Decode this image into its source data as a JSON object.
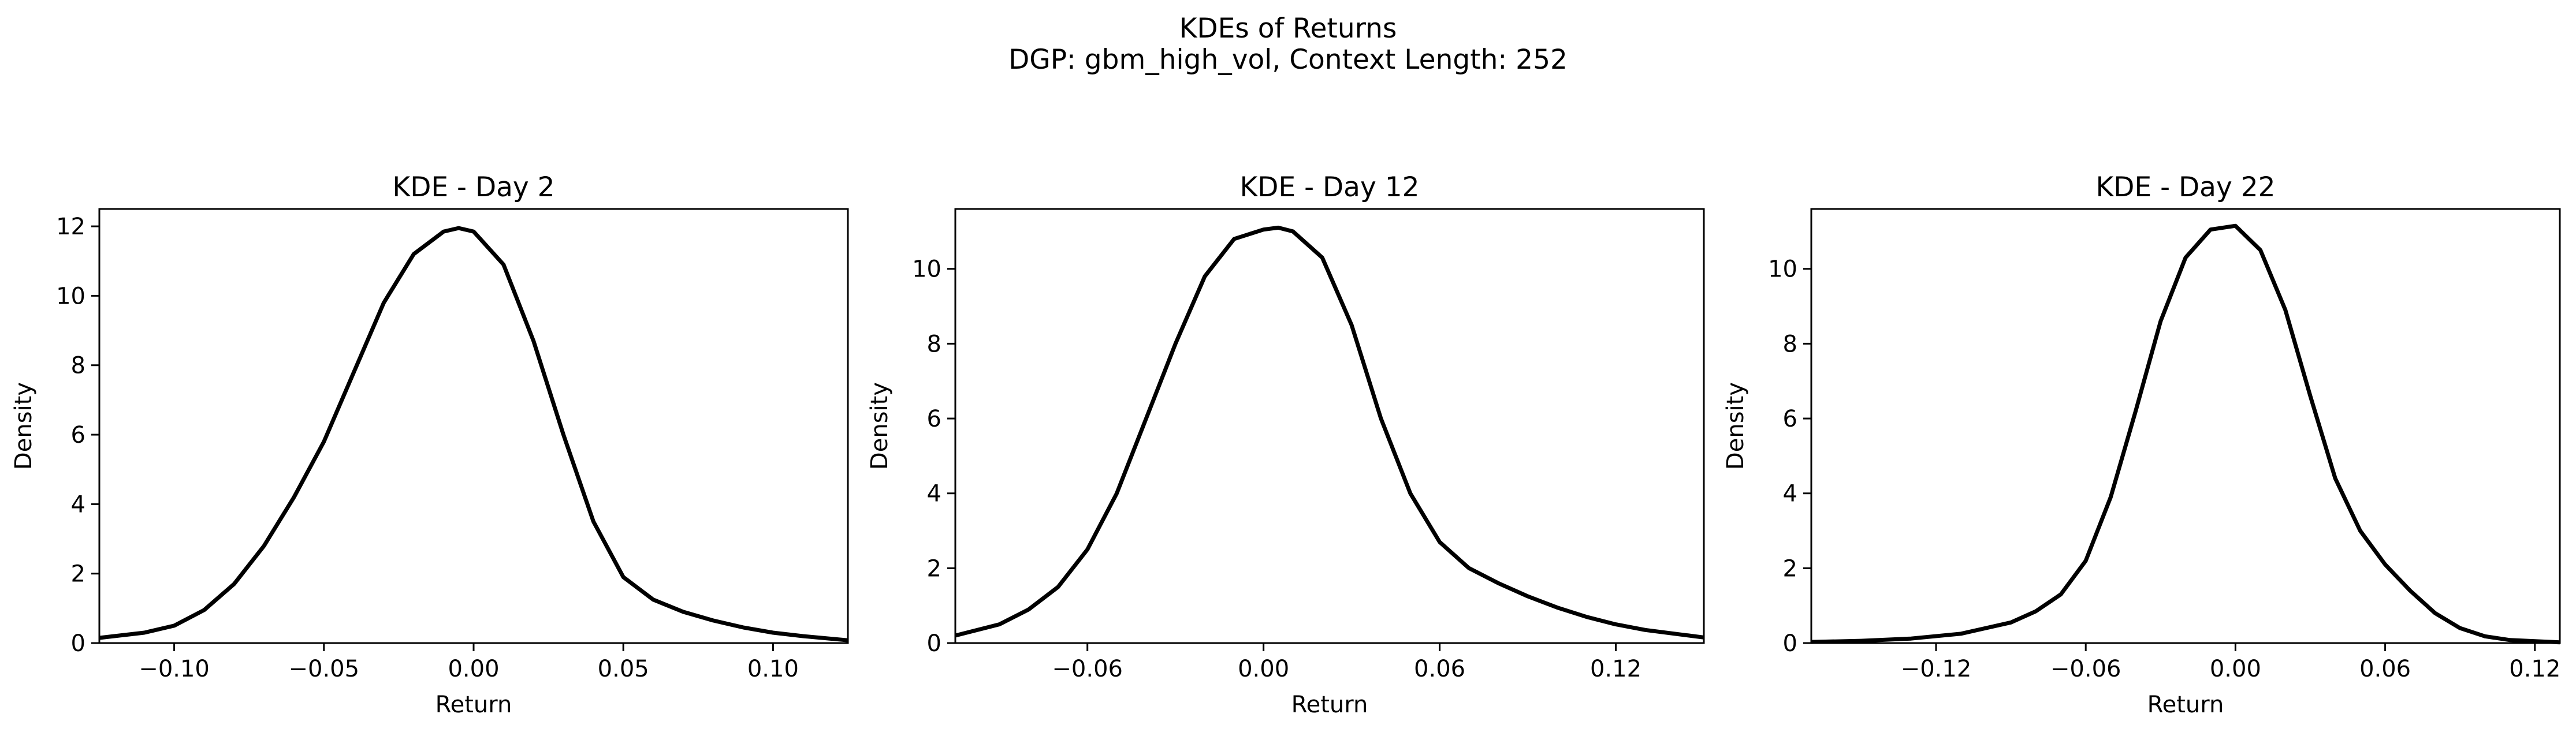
{
  "figure": {
    "title_line1": "KDEs of Returns",
    "title_line2": "DGP: gbm_high_vol, Context Length: 252"
  },
  "chart_data": [
    {
      "type": "line",
      "title": "KDE - Day 2",
      "xlabel": "Return",
      "ylabel": "Density",
      "xlim": [
        -0.125,
        0.125
      ],
      "ylim": [
        0,
        12.5
      ],
      "xticks": [
        -0.1,
        -0.05,
        0.0,
        0.05,
        0.1
      ],
      "xtick_labels": [
        "−0.10",
        "−0.05",
        "0.00",
        "0.05",
        "0.10"
      ],
      "yticks": [
        0,
        2,
        4,
        6,
        8,
        10,
        12
      ],
      "ytick_labels": [
        "0",
        "2",
        "4",
        "6",
        "8",
        "10",
        "12"
      ],
      "grid": false,
      "series": [
        {
          "color": "#000000",
          "x": [
            -0.125,
            -0.11,
            -0.1,
            -0.09,
            -0.08,
            -0.07,
            -0.06,
            -0.05,
            -0.04,
            -0.03,
            -0.02,
            -0.01,
            -0.005,
            0.0,
            0.01,
            0.02,
            0.03,
            0.04,
            0.05,
            0.06,
            0.07,
            0.08,
            0.09,
            0.1,
            0.11,
            0.125
          ],
          "y": [
            0.15,
            0.3,
            0.5,
            0.95,
            1.7,
            2.8,
            4.2,
            5.8,
            7.8,
            9.8,
            11.2,
            11.85,
            11.95,
            11.85,
            10.9,
            8.7,
            6.0,
            3.5,
            1.9,
            1.25,
            0.9,
            0.65,
            0.45,
            0.3,
            0.2,
            0.08
          ]
        }
      ]
    },
    {
      "type": "line",
      "title": "KDE - Day 12",
      "xlabel": "Return",
      "ylabel": "Density",
      "xlim": [
        -0.105,
        0.15
      ],
      "ylim": [
        0,
        11.6
      ],
      "xticks": [
        -0.06,
        0.0,
        0.06,
        0.12
      ],
      "xtick_labels": [
        "−0.06",
        "0.00",
        "0.06",
        "0.12"
      ],
      "yticks": [
        0,
        2,
        4,
        6,
        8,
        10
      ],
      "ytick_labels": [
        "0",
        "2",
        "4",
        "6",
        "8",
        "10"
      ],
      "grid": false,
      "series": [
        {
          "color": "#000000",
          "x": [
            -0.105,
            -0.09,
            -0.08,
            -0.07,
            -0.06,
            -0.05,
            -0.04,
            -0.03,
            -0.02,
            -0.01,
            0.0,
            0.005,
            0.01,
            0.02,
            0.03,
            0.04,
            0.05,
            0.06,
            0.07,
            0.08,
            0.09,
            0.1,
            0.11,
            0.12,
            0.13,
            0.15
          ],
          "y": [
            0.2,
            0.5,
            0.9,
            1.5,
            2.5,
            4.0,
            6.0,
            8.0,
            9.8,
            10.8,
            11.05,
            11.1,
            11.0,
            10.3,
            8.5,
            6.0,
            4.0,
            2.7,
            2.0,
            1.6,
            1.25,
            0.95,
            0.7,
            0.5,
            0.35,
            0.15
          ]
        }
      ]
    },
    {
      "type": "line",
      "title": "KDE - Day 22",
      "xlabel": "Return",
      "ylabel": "Density",
      "xlim": [
        -0.17,
        0.13
      ],
      "ylim": [
        0,
        11.6
      ],
      "xticks": [
        -0.12,
        -0.06,
        0.0,
        0.06,
        0.12
      ],
      "xtick_labels": [
        "−0.12",
        "−0.06",
        "0.00",
        "0.06",
        "0.12"
      ],
      "yticks": [
        0,
        2,
        4,
        6,
        8,
        10
      ],
      "ytick_labels": [
        "0",
        "2",
        "4",
        "6",
        "8",
        "10"
      ],
      "grid": false,
      "series": [
        {
          "color": "#000000",
          "x": [
            -0.17,
            -0.15,
            -0.13,
            -0.11,
            -0.09,
            -0.08,
            -0.07,
            -0.06,
            -0.05,
            -0.04,
            -0.03,
            -0.02,
            -0.01,
            0.0,
            0.01,
            0.02,
            0.03,
            0.04,
            0.05,
            0.06,
            0.07,
            0.08,
            0.09,
            0.1,
            0.11,
            0.13
          ],
          "y": [
            0.03,
            0.06,
            0.12,
            0.25,
            0.55,
            0.85,
            1.3,
            2.2,
            3.9,
            6.2,
            8.6,
            10.3,
            11.05,
            11.15,
            10.5,
            8.9,
            6.6,
            4.4,
            3.0,
            2.1,
            1.4,
            0.8,
            0.4,
            0.18,
            0.08,
            0.02
          ]
        }
      ]
    }
  ]
}
